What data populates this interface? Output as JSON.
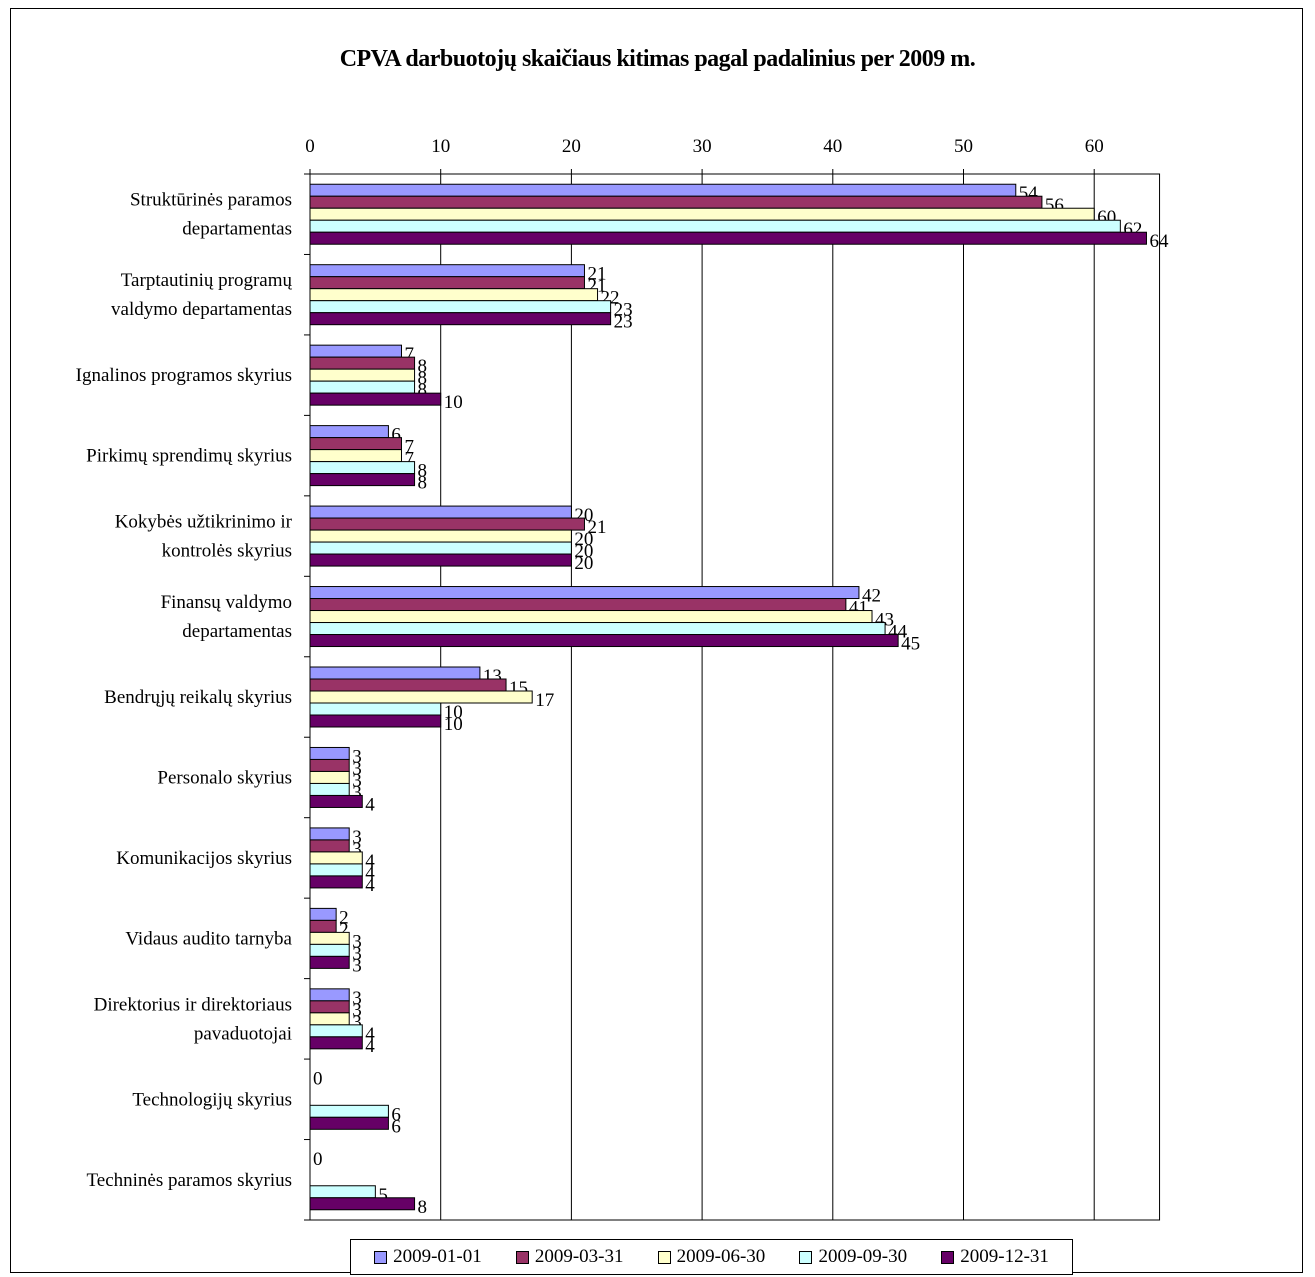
{
  "chart_data": {
    "type": "bar",
    "orientation": "horizontal",
    "title": "CPVA darbuotojų skaičiaus kitimas pagal padalinius per 2009 m.",
    "xlabel": "",
    "ylabel": "",
    "xlim": [
      0,
      65
    ],
    "ticks": [
      0,
      10,
      20,
      30,
      40,
      50,
      60
    ],
    "axis_position": "top",
    "grid": true,
    "legend_position": "bottom",
    "categories": [
      [
        "Struktūrinės paramos",
        "departamentas"
      ],
      [
        "Tarptautinių programų",
        "valdymo departamentas"
      ],
      [
        "Ignalinos programos skyrius"
      ],
      [
        "Pirkimų sprendimų skyrius"
      ],
      [
        "Kokybės užtikrinimo ir",
        "kontrolės skyrius"
      ],
      [
        "Finansų valdymo",
        "departamentas"
      ],
      [
        "Bendrųjų reikalų skyrius"
      ],
      [
        "Personalo skyrius"
      ],
      [
        "Komunikacijos skyrius"
      ],
      [
        "Vidaus audito tarnyba"
      ],
      [
        "Direktorius ir direktoriaus",
        "pavaduotojai"
      ],
      [
        "Technologijų skyrius"
      ],
      [
        "Techninės paramos skyrius"
      ]
    ],
    "series": [
      {
        "name": "2009-01-01",
        "color": "#9999ff",
        "values": [
          54,
          21,
          7,
          6,
          20,
          42,
          13,
          3,
          3,
          2,
          3,
          0,
          0
        ]
      },
      {
        "name": "2009-03-31",
        "color": "#993366",
        "values": [
          56,
          21,
          8,
          7,
          21,
          41,
          15,
          3,
          3,
          2,
          3,
          null,
          null
        ]
      },
      {
        "name": "2009-06-30",
        "color": "#ffffcc",
        "values": [
          60,
          22,
          8,
          7,
          20,
          43,
          17,
          3,
          4,
          3,
          3,
          null,
          null
        ]
      },
      {
        "name": "2009-09-30",
        "color": "#ccffff",
        "values": [
          62,
          23,
          8,
          8,
          20,
          44,
          10,
          3,
          4,
          3,
          4,
          6,
          5
        ]
      },
      {
        "name": "2009-12-31",
        "color": "#660066",
        "values": [
          64,
          23,
          10,
          8,
          20,
          45,
          10,
          4,
          4,
          3,
          4,
          6,
          8
        ]
      }
    ]
  }
}
